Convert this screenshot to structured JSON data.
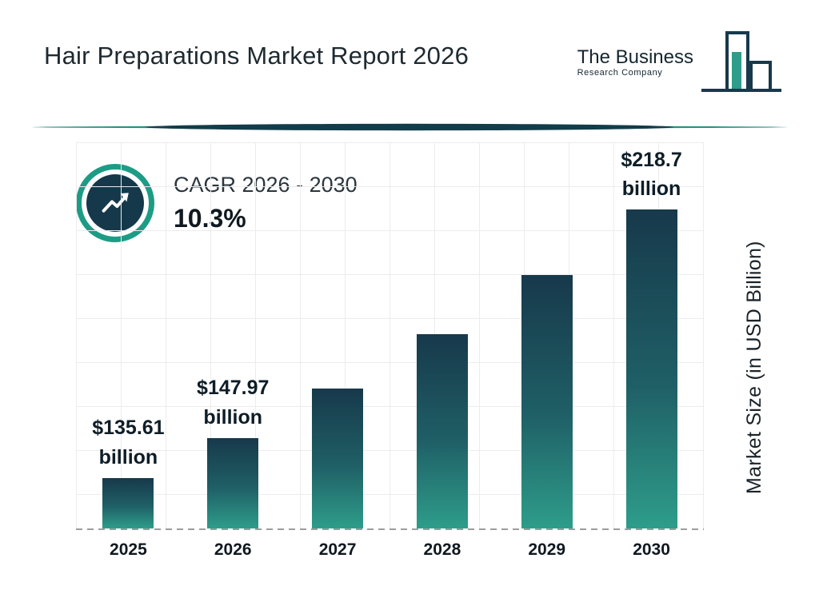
{
  "header": {
    "title": "Hair Preparations Market Report 2026",
    "logo": {
      "line1": "The Business",
      "line2": "Research Company"
    }
  },
  "cagr": {
    "label": "CAGR 2026 - 2030",
    "value": "10.3%"
  },
  "chart_data": {
    "type": "bar",
    "title": "Hair Preparations Market Report 2026",
    "categories": [
      "2025",
      "2026",
      "2027",
      "2028",
      "2029",
      "2030"
    ],
    "values": [
      135.61,
      147.97,
      163.21,
      180.02,
      198.56,
      218.7
    ],
    "data_labels": [
      {
        "value": "$135.61",
        "unit": "billion"
      },
      {
        "value": "$147.97",
        "unit": "billion"
      },
      null,
      null,
      null,
      {
        "value": "$218.7",
        "unit": "billion"
      }
    ],
    "xlabel": "",
    "ylabel": "Market Size (in USD Billion)",
    "ylim": [
      120,
      240
    ],
    "grid": true,
    "legend": false,
    "cagr_label": "CAGR 2026 - 2030",
    "cagr_value": "10.3%"
  },
  "colors": {
    "teal": "#2E9D8A",
    "navy": "#17394B",
    "ring_teal": "#1D9C85",
    "grid": "#ECECEC",
    "axis_dash": "#9D9D9D",
    "title_text": "#1E2A30"
  }
}
